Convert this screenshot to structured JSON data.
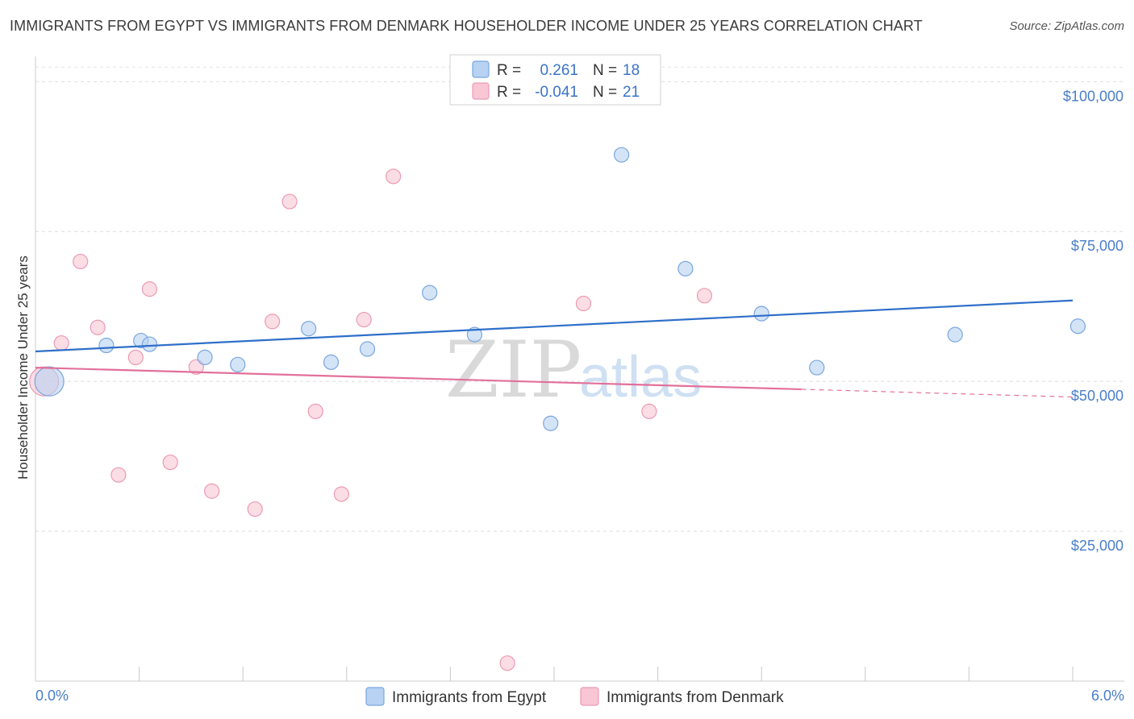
{
  "header": {
    "title": "IMMIGRANTS FROM EGYPT VS IMMIGRANTS FROM DENMARK HOUSEHOLDER INCOME UNDER 25 YEARS CORRELATION CHART",
    "source": "Source: ZipAtlas.com"
  },
  "watermark": {
    "zip": "ZIP",
    "atlas": "atlas"
  },
  "colors": {
    "egypt_fill": "#b7d2f2",
    "egypt_stroke": "#7aa6dd",
    "egypt_line": "#2f6fc9",
    "denmark_fill": "#f8c6d4",
    "denmark_stroke": "#ec9ab3",
    "denmark_line": "#e2709a",
    "axis_text": "#4a7ec9"
  },
  "legend": {
    "r_label": "R =",
    "n_label": "N =",
    "egypt_r": "0.261",
    "egypt_n": "18",
    "denmark_r": "-0.041",
    "denmark_n": "21"
  },
  "chart_data": {
    "type": "scatter",
    "title": "IMMIGRANTS FROM EGYPT VS IMMIGRANTS FROM DENMARK HOUSEHOLDER INCOME UNDER 25 YEARS CORRELATION CHART",
    "xlabel": "",
    "ylabel": "Householder Income Under 25 years",
    "xlim": [
      0,
      6
    ],
    "ylim": [
      0,
      103000
    ],
    "x_tick_labels": [
      "0.0%",
      "6.0%"
    ],
    "y_ticks": [
      25000,
      50000,
      75000,
      100000
    ],
    "y_tick_labels": [
      "$25,000",
      "$50,000",
      "$75,000",
      "$100,000"
    ],
    "grid": true,
    "legend_position": "top-center",
    "series": [
      {
        "name": "Immigrants from Egypt",
        "r": 0.261,
        "n": 18,
        "trend": {
          "x0": 0.0,
          "y0": 55000,
          "x1": 6.0,
          "y1": 63500,
          "dashed_from": null
        },
        "points": [
          {
            "x": 0.08,
            "y": 50000,
            "big": true
          },
          {
            "x": 0.41,
            "y": 56000
          },
          {
            "x": 0.61,
            "y": 56800
          },
          {
            "x": 0.66,
            "y": 56200
          },
          {
            "x": 0.98,
            "y": 54000
          },
          {
            "x": 1.17,
            "y": 52800
          },
          {
            "x": 1.58,
            "y": 58800
          },
          {
            "x": 1.71,
            "y": 53200
          },
          {
            "x": 1.92,
            "y": 55400
          },
          {
            "x": 2.28,
            "y": 64800
          },
          {
            "x": 2.54,
            "y": 57800
          },
          {
            "x": 2.98,
            "y": 43000
          },
          {
            "x": 3.39,
            "y": 87800
          },
          {
            "x": 3.76,
            "y": 68800
          },
          {
            "x": 4.2,
            "y": 61300
          },
          {
            "x": 4.52,
            "y": 52300
          },
          {
            "x": 5.32,
            "y": 57800
          },
          {
            "x": 6.03,
            "y": 59200
          }
        ]
      },
      {
        "name": "Immigrants from Denmark",
        "r": -0.041,
        "n": 21,
        "trend": {
          "x0": 0.0,
          "y0": 52300,
          "x1": 6.0,
          "y1": 47400,
          "dashed_from": 4.43
        },
        "points": [
          {
            "x": 0.05,
            "y": 50000,
            "big": true
          },
          {
            "x": 0.15,
            "y": 56400
          },
          {
            "x": 0.26,
            "y": 70000
          },
          {
            "x": 0.36,
            "y": 59000
          },
          {
            "x": 0.48,
            "y": 34400
          },
          {
            "x": 0.58,
            "y": 54000
          },
          {
            "x": 0.66,
            "y": 65400
          },
          {
            "x": 0.78,
            "y": 36500
          },
          {
            "x": 0.93,
            "y": 52400
          },
          {
            "x": 1.02,
            "y": 31700
          },
          {
            "x": 1.27,
            "y": 28700
          },
          {
            "x": 1.37,
            "y": 60000
          },
          {
            "x": 1.47,
            "y": 80000
          },
          {
            "x": 1.62,
            "y": 45000
          },
          {
            "x": 1.77,
            "y": 31200
          },
          {
            "x": 1.9,
            "y": 60300
          },
          {
            "x": 2.07,
            "y": 84200
          },
          {
            "x": 2.73,
            "y": 3000
          },
          {
            "x": 3.17,
            "y": 63000
          },
          {
            "x": 3.55,
            "y": 45000
          },
          {
            "x": 3.87,
            "y": 64300
          }
        ]
      }
    ]
  }
}
